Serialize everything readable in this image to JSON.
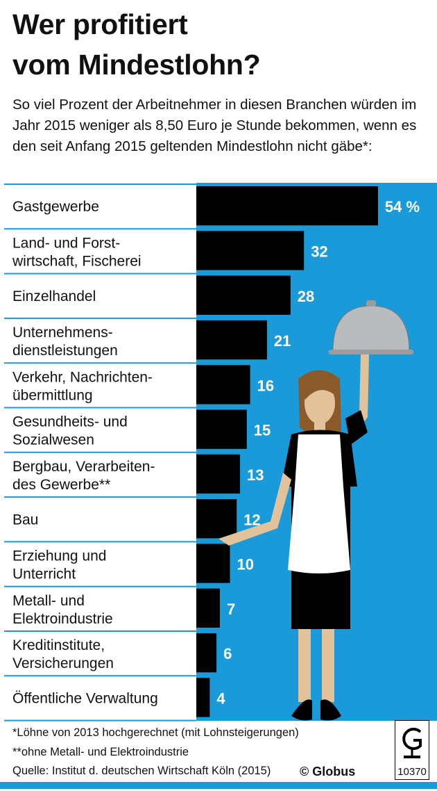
{
  "header": {
    "title_line1": "Wer profitiert",
    "title_line2": "vom Mindestlohn?",
    "subtitle": "So viel Prozent der Arbeitnehmer in diesen Branchen würden im Jahr 2015 weniger als 8,50 Euro je Stunde bekommen, wenn es den seit Anfang 2015 geltenden Mindestlohn nicht gäbe*:"
  },
  "chart_data": {
    "type": "bar",
    "orientation": "horizontal",
    "title": "Wer profitiert vom Mindestlohn?",
    "unit": "%",
    "categories": [
      [
        "Gastgewerbe"
      ],
      [
        "Land- und Forst-",
        "wirtschaft, Fischerei"
      ],
      [
        "Einzelhandel"
      ],
      [
        "Unternehmens-",
        "dienstleistungen"
      ],
      [
        "Verkehr, Nachrichten-",
        "übermittlung"
      ],
      [
        "Gesundheits- und",
        "Sozialwesen"
      ],
      [
        "Bergbau, Verarbeiten-",
        "des Gewerbe**"
      ],
      [
        "Bau"
      ],
      [
        "Erziehung und",
        "Unterricht"
      ],
      [
        "Metall- und",
        "Elektroindustrie"
      ],
      [
        "Kreditinstitute,",
        "Versicherungen"
      ],
      [
        "Öffentliche Verwaltung"
      ]
    ],
    "values": [
      54,
      32,
      28,
      21,
      16,
      15,
      13,
      12,
      10,
      7,
      6,
      4
    ],
    "value_labels": [
      "54 %",
      "32",
      "28",
      "21",
      "16",
      "15",
      "13",
      "12",
      "10",
      "7",
      "6",
      "4"
    ],
    "xlim": [
      0,
      70
    ],
    "colors": {
      "bar": "#000000",
      "background": "#1a9ad8",
      "label": "#ffffff",
      "divider": "#1a9ad8"
    }
  },
  "footer": {
    "note1": "*Löhne von 2013 hochgerechnet (mit Lohnsteigerungen)",
    "note2": "**ohne Metall- und Elektroindustrie",
    "source": "Quelle: Institut d. deutschen Wirtschaft Köln (2015)",
    "copyright": "© Globus",
    "logo_number": "10370"
  }
}
